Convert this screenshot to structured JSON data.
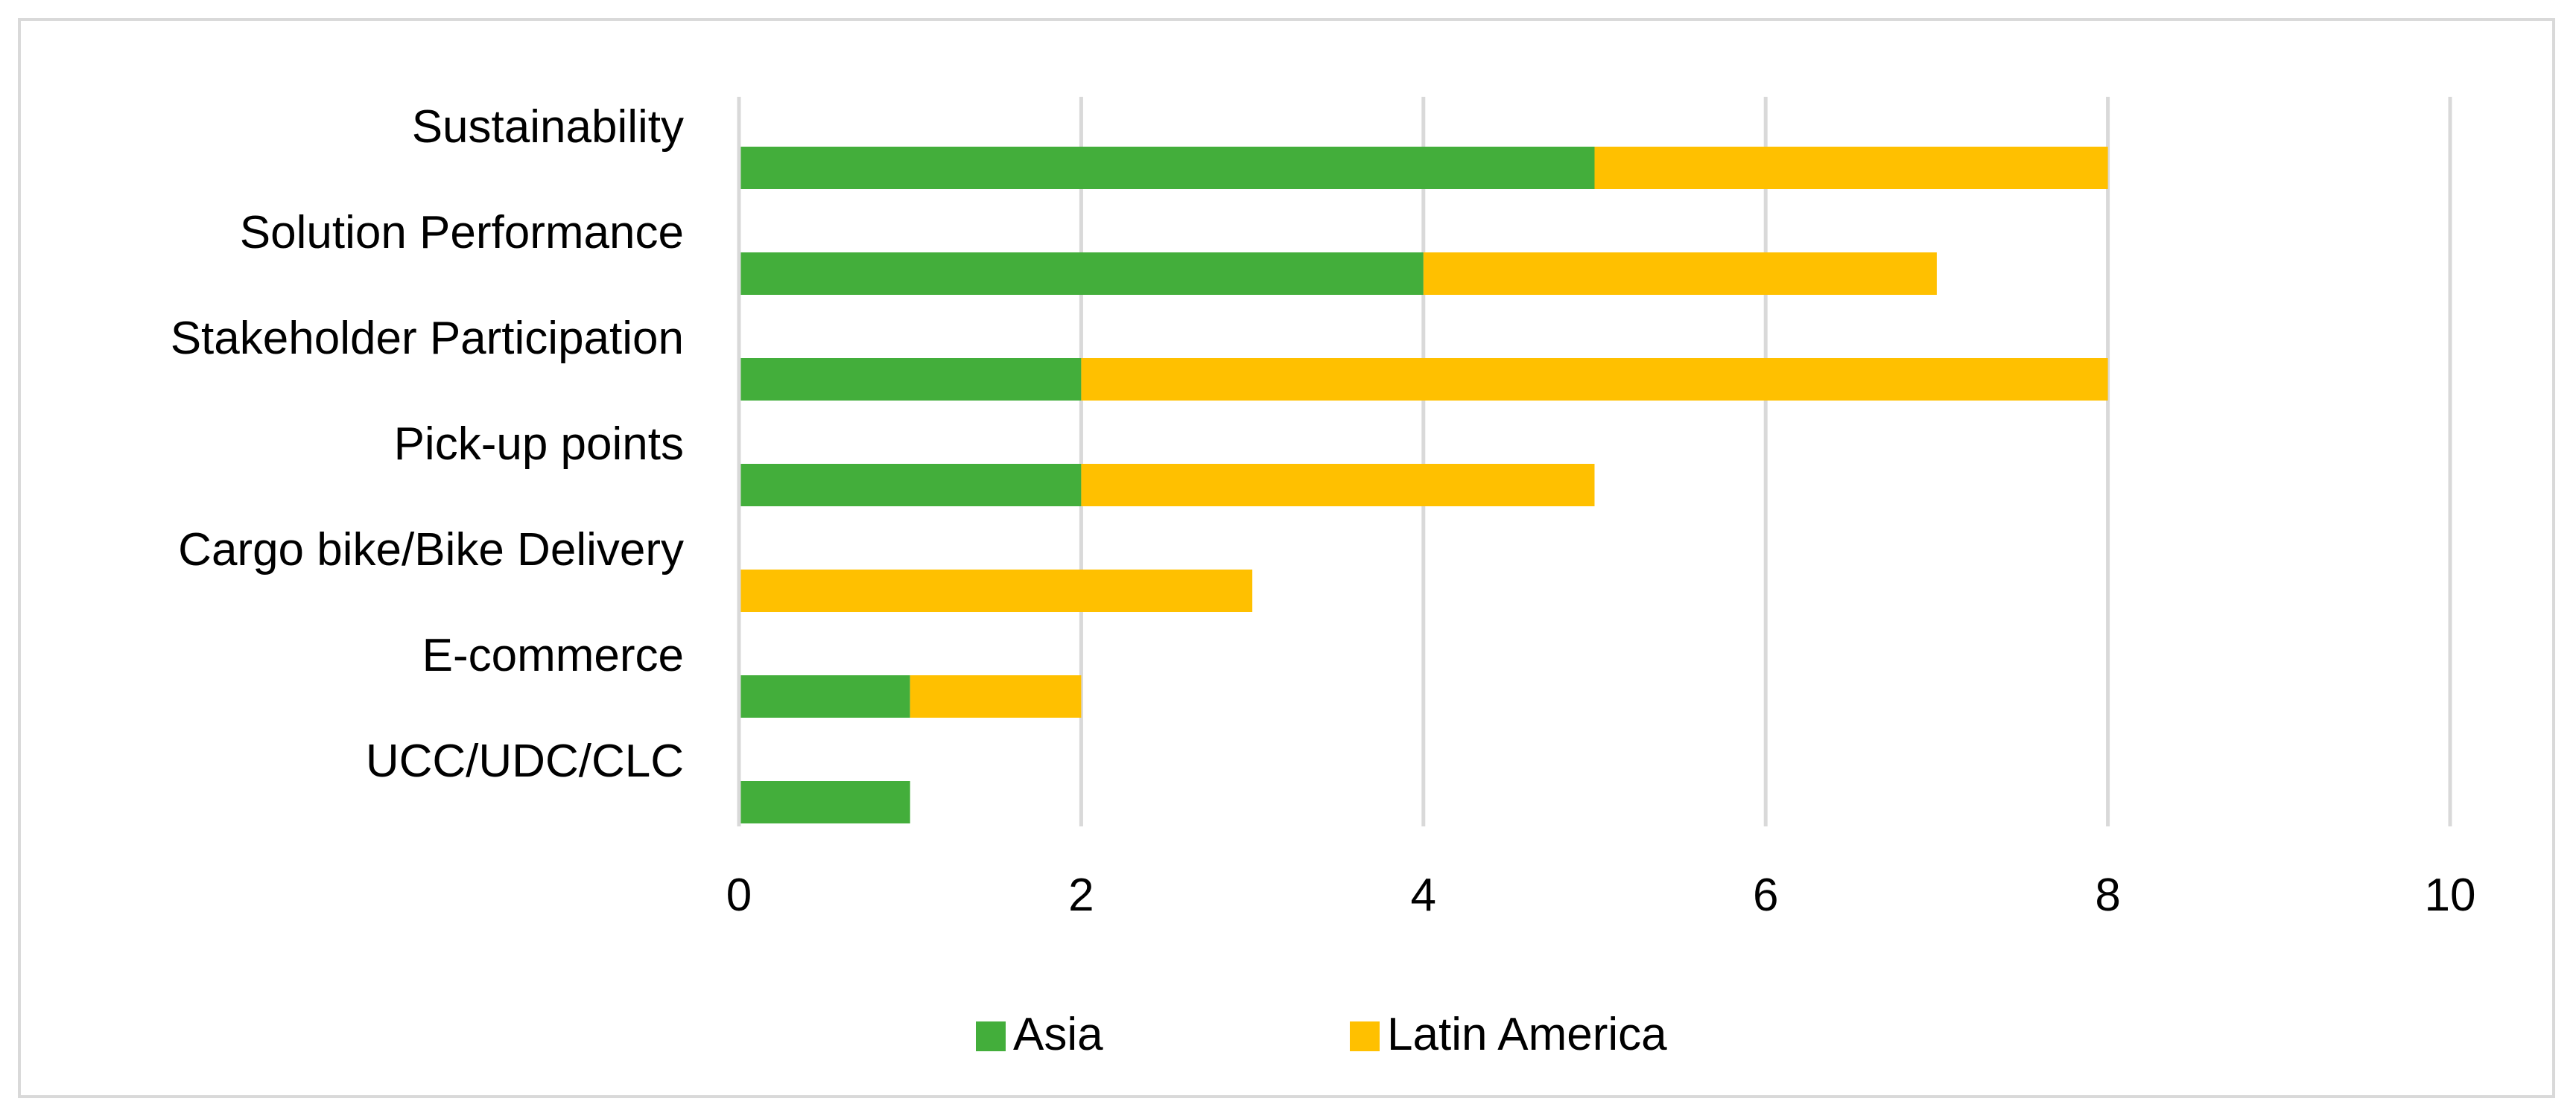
{
  "chart_data": {
    "type": "bar",
    "orientation": "horizontal",
    "stacked": true,
    "categories": [
      "Sustainability",
      "Solution Performance",
      "Stakeholder Participation",
      "Pick-up points",
      "Cargo bike/Bike Delivery",
      "E-commerce",
      "UCC/UDC/CLC"
    ],
    "series": [
      {
        "name": "Asia",
        "color": "#43ae3b",
        "values": [
          5,
          4,
          2,
          2,
          0,
          1,
          1
        ]
      },
      {
        "name": "Latin America",
        "color": "#ffc000",
        "values": [
          3,
          3,
          6,
          3,
          3,
          1,
          0
        ]
      }
    ],
    "title": "",
    "xlabel": "",
    "ylabel": "",
    "xlim": [
      0,
      10
    ],
    "ticks": [
      "0",
      "2",
      "4",
      "6",
      "8",
      "10"
    ],
    "grid": true,
    "legend_position": "bottom"
  }
}
